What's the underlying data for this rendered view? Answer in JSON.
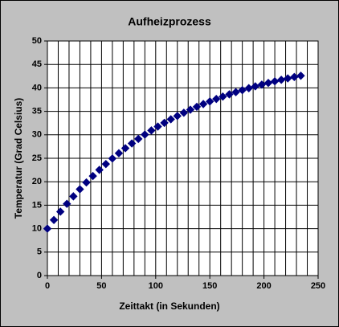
{
  "chart_data": {
    "type": "scatter",
    "title": "Aufheizprozess",
    "x_label": "Zeittakt (in Sekunden)",
    "y_label": "Temperatur (Grad Celsius)",
    "x": [
      0,
      6,
      12,
      18,
      24,
      30,
      36,
      42,
      48,
      54,
      60,
      66,
      72,
      78,
      84,
      90,
      96,
      102,
      108,
      114,
      120,
      126,
      132,
      138,
      144,
      150,
      156,
      162,
      168,
      174,
      180,
      186,
      192,
      198,
      204,
      210,
      216,
      222,
      228,
      234
    ],
    "series": [
      {
        "name": "Temperatur",
        "color": "#000080",
        "values": [
          10,
          11.85,
          13.62,
          15.29,
          16.89,
          18.4,
          19.85,
          21.22,
          22.53,
          23.77,
          24.95,
          26.08,
          27.15,
          28.16,
          29.13,
          30.05,
          30.93,
          31.76,
          32.55,
          33.31,
          34.02,
          34.7,
          35.35,
          35.97,
          36.56,
          37.11,
          37.64,
          38.15,
          38.63,
          39.09,
          39.52,
          39.94,
          40.33,
          40.7,
          41.06,
          41.4,
          41.72,
          42.03,
          42.32,
          42.59
        ]
      }
    ],
    "xlim": [
      0,
      250
    ],
    "xticks": [
      0,
      50,
      100,
      150,
      200,
      250
    ],
    "xgrid": [
      0,
      10,
      20,
      30,
      40,
      50,
      60,
      70,
      80,
      90,
      100,
      110,
      120,
      130,
      140,
      150,
      160,
      170,
      180,
      190,
      200,
      210,
      220,
      230,
      240,
      250
    ],
    "ylim": [
      0,
      50
    ],
    "yticks": [
      0,
      5,
      10,
      15,
      20,
      25,
      30,
      35,
      40,
      45,
      50
    ],
    "grid": true
  }
}
